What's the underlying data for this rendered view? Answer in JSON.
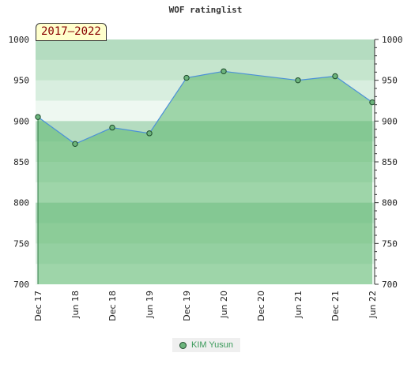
{
  "title": "WOF ratinglist",
  "badge": "2017–2022",
  "chart_data": {
    "type": "area",
    "title": "WOF ratinglist",
    "x": [
      "Dec 17",
      "Jun 18",
      "Dec 18",
      "Jun 19",
      "Dec 19",
      "Jun 20",
      "Dec 20",
      "Jun 21",
      "Dec 21",
      "Jun 22"
    ],
    "series": [
      {
        "name": "KIM Yusun",
        "points": [
          {
            "x": "Dec 17",
            "y": 905
          },
          {
            "x": "Jun 18",
            "y": 872
          },
          {
            "x": "Dec 18",
            "y": 892
          },
          {
            "x": "Jun 19",
            "y": 885
          },
          {
            "x": "Dec 19",
            "y": 953
          },
          {
            "x": "Jun 20",
            "y": 961
          },
          {
            "x": "Jun 21",
            "y": 950
          },
          {
            "x": "Dec 21",
            "y": 955
          },
          {
            "x": "Jun 22",
            "y": 923
          }
        ]
      }
    ],
    "yticks": [
      700,
      750,
      800,
      850,
      900,
      950,
      1000
    ],
    "ylim": [
      700,
      1000
    ],
    "grid": false,
    "legend": "bottom-center"
  },
  "legend": {
    "label": "KIM Yusun"
  },
  "colors": {
    "area": "#5db86e",
    "line": "#4b90d8",
    "marker": "#6cb47c",
    "marker_stroke": "#1c4a2a"
  }
}
